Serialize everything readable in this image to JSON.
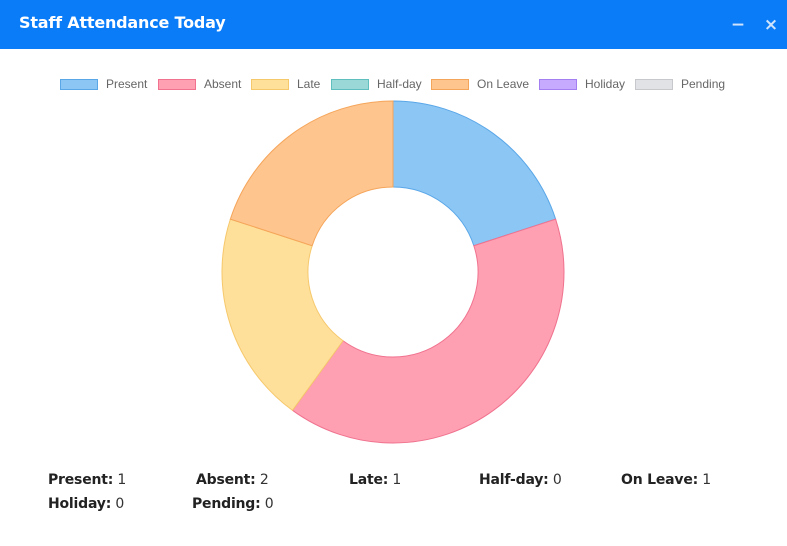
{
  "widget": {
    "title": "Staff Attendance Today",
    "minimize_icon": "minus-icon",
    "close_icon": "close-icon",
    "minimize_glyph": "−",
    "close_glyph": "×",
    "header_color": "#0a7cf8"
  },
  "legend": [
    {
      "label": "Present",
      "fill": "#8cc6f4",
      "stroke": "#5aa7e8"
    },
    {
      "label": "Absent",
      "fill": "#fe9fb2",
      "stroke": "#f0728e"
    },
    {
      "label": "Late",
      "fill": "#fee09b",
      "stroke": "#f6c86c"
    },
    {
      "label": "Half-day",
      "fill": "#9ad8d8",
      "stroke": "#5fbfbf"
    },
    {
      "label": "On Leave",
      "fill": "#fec58e",
      "stroke": "#f5a55a"
    },
    {
      "label": "Holiday",
      "fill": "#c5aafe",
      "stroke": "#a37ff2"
    },
    {
      "label": "Pending",
      "fill": "#e1e2e5",
      "stroke": "#c6c8cc"
    }
  ],
  "chart_data": {
    "type": "pie",
    "variant": "doughnut",
    "categories": [
      "Present",
      "Absent",
      "Late",
      "Half-day",
      "On Leave",
      "Holiday",
      "Pending"
    ],
    "values": [
      1,
      2,
      1,
      0,
      1,
      0,
      0
    ],
    "colors": [
      "#8cc6f4",
      "#fe9fb2",
      "#fee09b",
      "#9ad8d8",
      "#fec58e",
      "#c5aafe",
      "#e1e2e5"
    ],
    "border_colors": [
      "#5aa7e8",
      "#f0728e",
      "#f6c86c",
      "#5fbfbf",
      "#f5a55a",
      "#a37ff2",
      "#c6c8cc"
    ],
    "legend_position": "top",
    "start_angle": "top",
    "title": ""
  },
  "stats": [
    {
      "label": "Present:",
      "value": "1"
    },
    {
      "label": "Absent:",
      "value": "2"
    },
    {
      "label": "Late:",
      "value": "1"
    },
    {
      "label": "Half-day:",
      "value": "0"
    },
    {
      "label": "On Leave:",
      "value": "1"
    },
    {
      "label": "Holiday:",
      "value": "0"
    },
    {
      "label": "Pending:",
      "value": "0"
    }
  ]
}
